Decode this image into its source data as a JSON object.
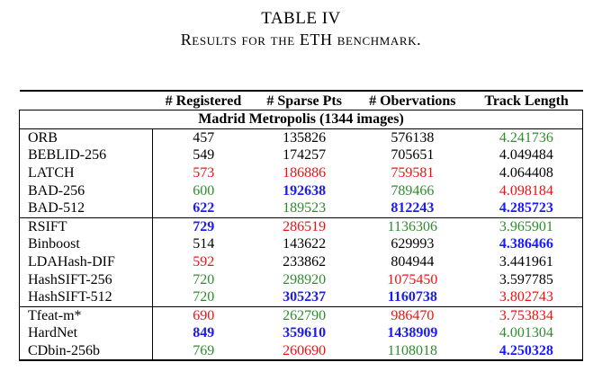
{
  "caption": {
    "table_number": "TABLE IV",
    "title": "Results for the ETH benchmark."
  },
  "colors": {
    "best": "#1a1aff",
    "good": "#2e8b2e",
    "bad": "#ee1111",
    "neutral": "#000000"
  },
  "table": {
    "headers": [
      "",
      "# Registered",
      "# Sparse Pts",
      "# Obervations",
      "Track Length"
    ],
    "section_title": "Madrid Metropolis (1344 images)",
    "groups": [
      {
        "rows": [
          {
            "method": "ORB",
            "cells": [
              {
                "v": "457",
                "c": "black"
              },
              {
                "v": "135826",
                "c": "black"
              },
              {
                "v": "576138",
                "c": "black"
              },
              {
                "v": "4.241736",
                "c": "green"
              }
            ]
          },
          {
            "method": "BEBLID-256",
            "cells": [
              {
                "v": "549",
                "c": "black"
              },
              {
                "v": "174257",
                "c": "black"
              },
              {
                "v": "705651",
                "c": "black"
              },
              {
                "v": "4.049484",
                "c": "black"
              }
            ]
          },
          {
            "method": "LATCH",
            "cells": [
              {
                "v": "573",
                "c": "red"
              },
              {
                "v": "186886",
                "c": "red"
              },
              {
                "v": "759581",
                "c": "red"
              },
              {
                "v": "4.064408",
                "c": "black"
              }
            ]
          },
          {
            "method": "BAD-256",
            "cells": [
              {
                "v": "600",
                "c": "green"
              },
              {
                "v": "192638",
                "c": "blue"
              },
              {
                "v": "789466",
                "c": "green"
              },
              {
                "v": "4.098184",
                "c": "red"
              }
            ]
          },
          {
            "method": "BAD-512",
            "cells": [
              {
                "v": "622",
                "c": "blue"
              },
              {
                "v": "189523",
                "c": "green"
              },
              {
                "v": "812243",
                "c": "blue"
              },
              {
                "v": "4.285723",
                "c": "blue"
              }
            ]
          }
        ]
      },
      {
        "rows": [
          {
            "method": "RSIFT",
            "cells": [
              {
                "v": "729",
                "c": "blue"
              },
              {
                "v": "286519",
                "c": "red"
              },
              {
                "v": "1136306",
                "c": "green"
              },
              {
                "v": "3.965901",
                "c": "green"
              }
            ]
          },
          {
            "method": "Binboost",
            "cells": [
              {
                "v": "514",
                "c": "black"
              },
              {
                "v": "143622",
                "c": "black"
              },
              {
                "v": "629993",
                "c": "black"
              },
              {
                "v": "4.386466",
                "c": "blue"
              }
            ]
          },
          {
            "method": "LDAHash-DIF",
            "cells": [
              {
                "v": "592",
                "c": "red"
              },
              {
                "v": "233862",
                "c": "black"
              },
              {
                "v": "804944",
                "c": "black"
              },
              {
                "v": "3.441961",
                "c": "black"
              }
            ]
          },
          {
            "method": "HashSIFT-256",
            "cells": [
              {
                "v": "720",
                "c": "green"
              },
              {
                "v": "298920",
                "c": "green"
              },
              {
                "v": "1075450",
                "c": "red"
              },
              {
                "v": "3.597785",
                "c": "black"
              }
            ]
          },
          {
            "method": "HashSIFT-512",
            "cells": [
              {
                "v": "720",
                "c": "green"
              },
              {
                "v": "305237",
                "c": "blue"
              },
              {
                "v": "1160738",
                "c": "blue"
              },
              {
                "v": "3.802743",
                "c": "red"
              }
            ]
          }
        ]
      },
      {
        "rows": [
          {
            "method": "Tfeat-m*",
            "cells": [
              {
                "v": "690",
                "c": "red"
              },
              {
                "v": "262790",
                "c": "green"
              },
              {
                "v": "986470",
                "c": "red"
              },
              {
                "v": "3.753834",
                "c": "red"
              }
            ]
          },
          {
            "method": "HardNet",
            "cells": [
              {
                "v": "849",
                "c": "blue"
              },
              {
                "v": "359610",
                "c": "blue"
              },
              {
                "v": "1438909",
                "c": "blue"
              },
              {
                "v": "4.001304",
                "c": "green"
              }
            ]
          },
          {
            "method": "CDbin-256b",
            "cells": [
              {
                "v": "769",
                "c": "green"
              },
              {
                "v": "260690",
                "c": "red"
              },
              {
                "v": "1108018",
                "c": "green"
              },
              {
                "v": "4.250328",
                "c": "blue"
              }
            ]
          }
        ]
      }
    ]
  }
}
